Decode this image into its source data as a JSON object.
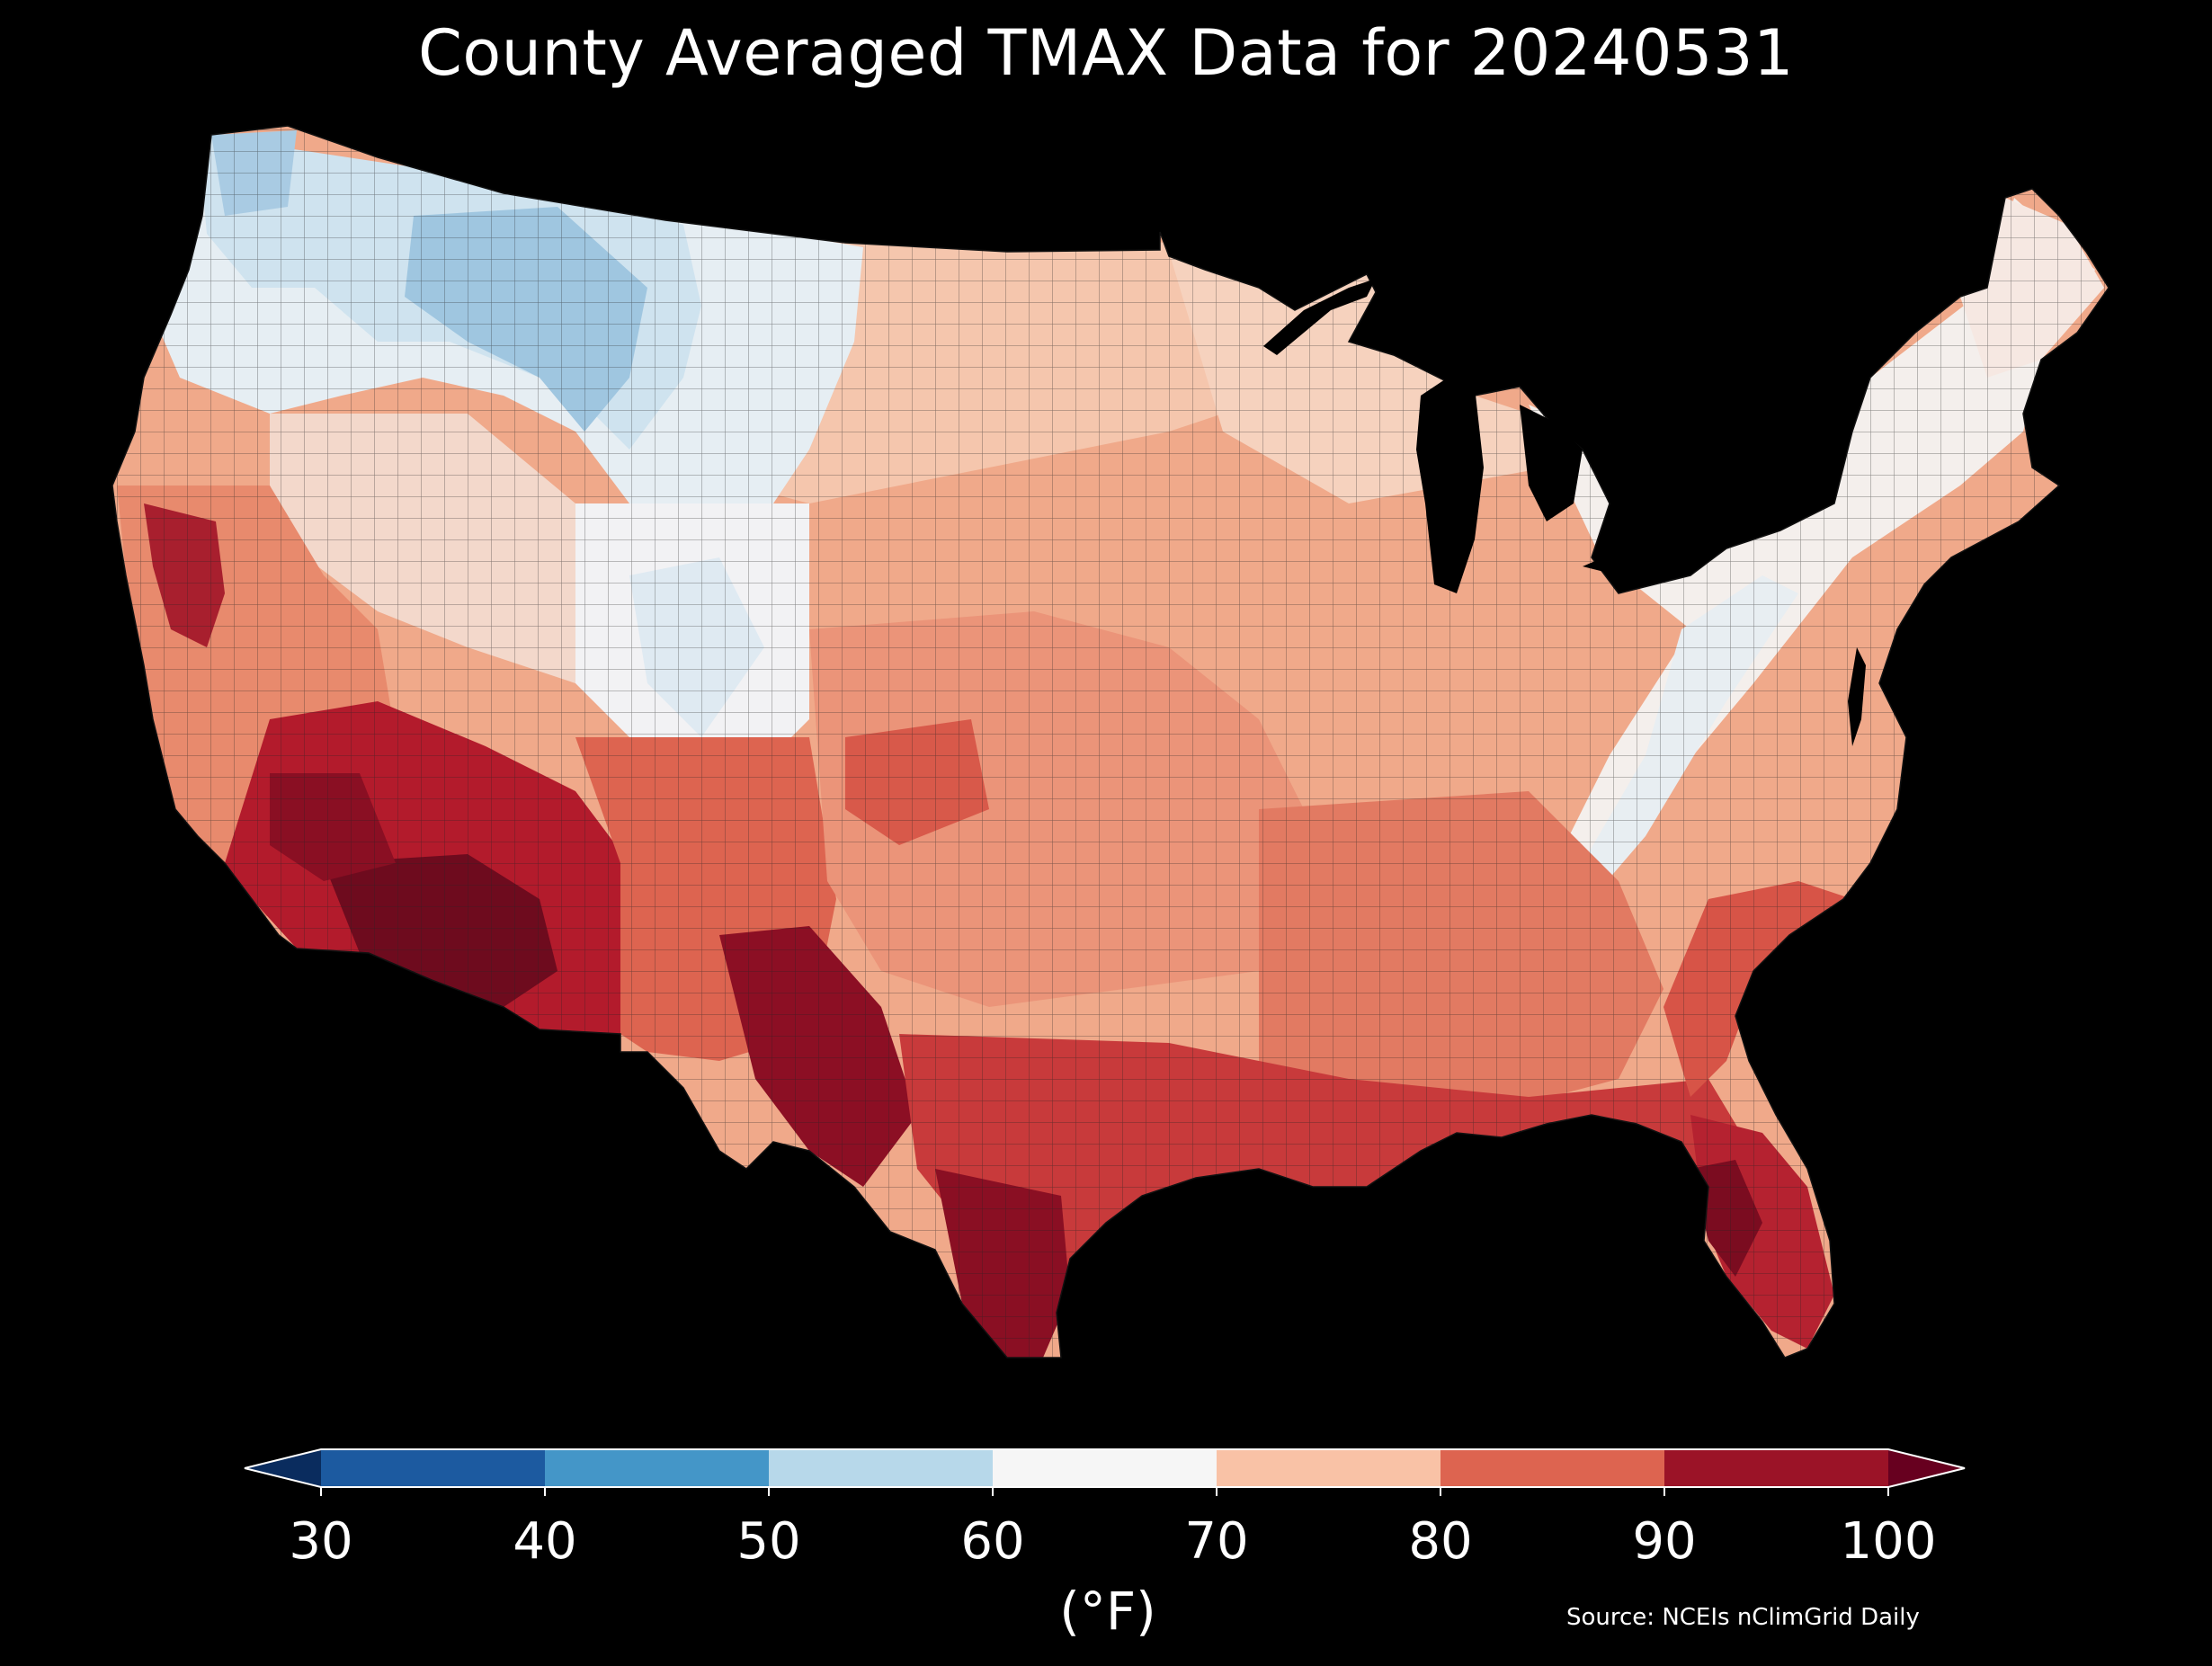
{
  "title": "County Averaged TMAX Data for 20240531",
  "map": {
    "region": "Contiguous United States counties",
    "background": "#000000",
    "county_border_color": "#222222"
  },
  "legend": {
    "unit": "(°F)",
    "ticks": [
      "30",
      "40",
      "50",
      "60",
      "70",
      "80",
      "90",
      "100"
    ],
    "bins": [
      {
        "range": [
          30,
          40
        ],
        "color": "#1c5aa0"
      },
      {
        "range": [
          40,
          50
        ],
        "color": "#4496c8"
      },
      {
        "range": [
          50,
          60
        ],
        "color": "#b7d8ea"
      },
      {
        "range": [
          60,
          70
        ],
        "color": "#f6f6f6"
      },
      {
        "range": [
          70,
          80
        ],
        "color": "#f9c2a6"
      },
      {
        "range": [
          80,
          90
        ],
        "color": "#dd6450"
      },
      {
        "range": [
          90,
          100
        ],
        "color": "#9b1327"
      }
    ],
    "under_color": "#0a2c5e",
    "over_color": "#67001f"
  },
  "source": "Source: NCEIs nClimGrid Daily"
}
